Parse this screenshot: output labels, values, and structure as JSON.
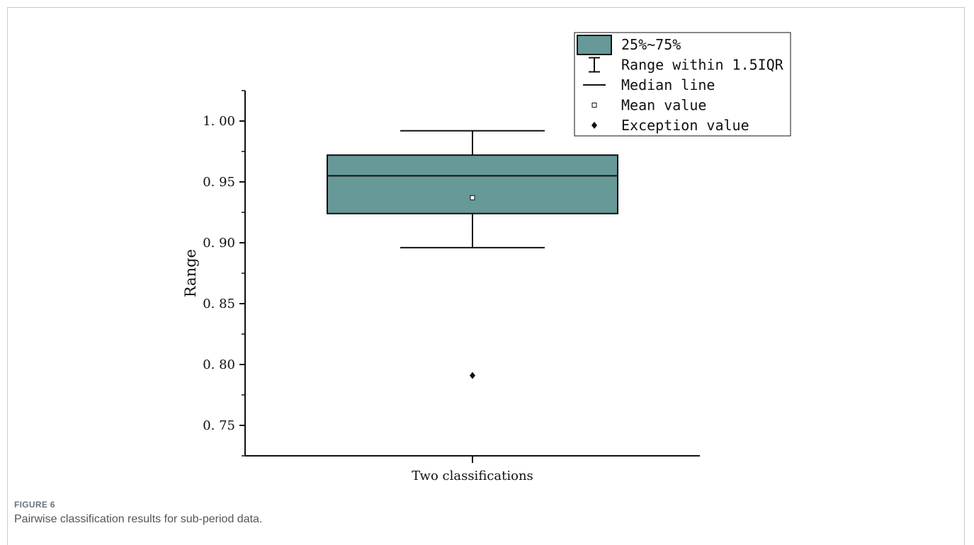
{
  "figure": {
    "label": "FIGURE 6",
    "caption": "Pairwise classification results for sub-period data."
  },
  "chart_data": {
    "type": "box",
    "categories": [
      "Two classifications"
    ],
    "xlabel": "Two classifications",
    "ylabel": "Range",
    "ylim": [
      0.725,
      1.025
    ],
    "yticks": [
      0.75,
      0.8,
      0.85,
      0.9,
      0.95,
      1.0
    ],
    "ytick_labels": [
      "0. 75",
      "0. 80",
      "0. 85",
      "0. 90",
      "0. 95",
      "1. 00"
    ],
    "box": {
      "whisker_low": 0.896,
      "q1": 0.924,
      "median": 0.955,
      "q3": 0.972,
      "whisker_high": 0.992,
      "mean": 0.937,
      "outliers": [
        0.791
      ]
    },
    "box_color": "#679999",
    "legend": {
      "position": "top-right",
      "items": [
        {
          "symbol": "box",
          "label": "25%~75%"
        },
        {
          "symbol": "whisker",
          "label": "Range within 1.5IQR"
        },
        {
          "symbol": "median",
          "label": "Median line"
        },
        {
          "symbol": "mean",
          "label": "Mean value"
        },
        {
          "symbol": "outlier",
          "label": "Exception value"
        }
      ]
    }
  }
}
